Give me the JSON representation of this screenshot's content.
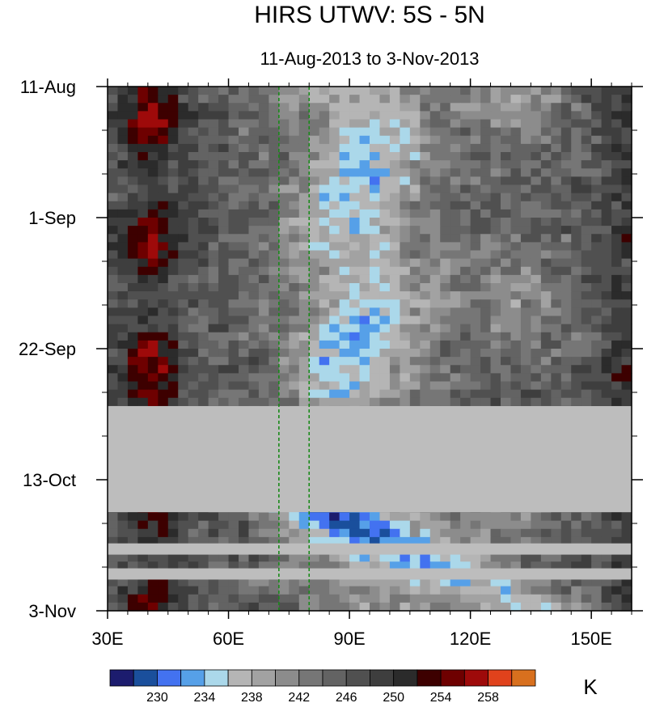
{
  "chart_data": {
    "type": "heatmap",
    "title": "HIRS UTWV: 5S - 5N",
    "subtitle": "11-Aug-2013 to 3-Nov-2013",
    "x_axis": {
      "range": [
        30,
        160
      ],
      "ticks": [
        {
          "value": 30,
          "label": "30E"
        },
        {
          "value": 60,
          "label": "60E"
        },
        {
          "value": 90,
          "label": "90E"
        },
        {
          "value": 120,
          "label": "120E"
        },
        {
          "value": 150,
          "label": "150E"
        }
      ],
      "minor_step": 5
    },
    "y_axis": {
      "range_days": [
        0,
        84
      ],
      "ticks": [
        {
          "day": 0,
          "label": "11-Aug"
        },
        {
          "day": 21,
          "label": "1-Sep"
        },
        {
          "day": 42,
          "label": "22-Sep"
        },
        {
          "day": 63,
          "label": "13-Oct"
        },
        {
          "day": 84,
          "label": "3-Nov"
        }
      ],
      "minor_step_days": 7
    },
    "reference_lines_lon": [
      72.5,
      80
    ],
    "missing_day_ranges": [
      [
        51.2,
        68.2
      ],
      [
        73.2,
        75.0
      ],
      [
        77.2,
        79.0
      ]
    ],
    "colorbar": {
      "unit": "K",
      "levels": [
        228,
        230,
        232,
        234,
        236,
        238,
        240,
        242,
        244,
        246,
        248,
        250,
        252,
        254,
        256,
        258
      ],
      "labels": [
        "230",
        "234",
        "238",
        "242",
        "246",
        "250",
        "254",
        "258"
      ],
      "colors": [
        "#1c1c6e",
        "#1a4f9c",
        "#4372f0",
        "#56a0e8",
        "#abd8ea",
        "#b5b5b5",
        "#a2a2a2",
        "#8c8c8c",
        "#767676",
        "#636363",
        "#505050",
        "#3e3e3e",
        "#2b2b2b",
        "#3d0000",
        "#6e0000",
        "#9e0a0a",
        "#e0421c",
        "#d8701e"
      ]
    }
  }
}
